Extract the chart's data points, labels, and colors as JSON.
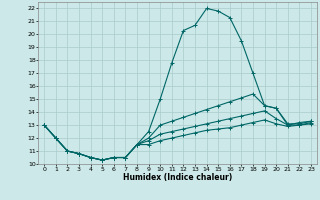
{
  "xlabel": "Humidex (Indice chaleur)",
  "background_color": "#cce8e8",
  "grid_color": "#aacccc",
  "line_color": "#006666",
  "xlim": [
    -0.5,
    23.5
  ],
  "ylim": [
    10,
    22.5
  ],
  "yticks": [
    10,
    11,
    12,
    13,
    14,
    15,
    16,
    17,
    18,
    19,
    20,
    21,
    22
  ],
  "xticks": [
    0,
    1,
    2,
    3,
    4,
    5,
    6,
    7,
    8,
    9,
    10,
    11,
    12,
    13,
    14,
    15,
    16,
    17,
    18,
    19,
    20,
    21,
    22,
    23
  ],
  "line1_x": [
    0,
    1,
    2,
    3,
    4,
    5,
    6,
    7,
    8,
    9,
    10,
    11,
    12,
    13,
    14,
    15,
    16,
    17,
    18,
    19,
    20,
    21,
    22,
    23
  ],
  "line1_y": [
    13,
    12,
    11,
    10.8,
    10.5,
    10.3,
    10.5,
    10.5,
    11.5,
    12.5,
    15,
    17.8,
    20.3,
    20.7,
    22,
    21.8,
    21.3,
    19.5,
    17,
    14.5,
    14.3,
    13,
    13.2,
    13.3
  ],
  "line2_x": [
    0,
    1,
    2,
    3,
    4,
    5,
    6,
    7,
    8,
    9,
    10,
    11,
    12,
    13,
    14,
    15,
    16,
    17,
    18,
    19,
    20,
    21,
    22,
    23
  ],
  "line2_y": [
    13,
    12,
    11,
    10.8,
    10.5,
    10.3,
    10.5,
    10.5,
    11.5,
    12.0,
    13.0,
    13.3,
    13.6,
    13.9,
    14.2,
    14.5,
    14.8,
    15.1,
    15.4,
    14.5,
    14.3,
    13.1,
    13.1,
    13.3
  ],
  "line3_x": [
    0,
    1,
    2,
    3,
    4,
    5,
    6,
    7,
    8,
    9,
    10,
    11,
    12,
    13,
    14,
    15,
    16,
    17,
    18,
    19,
    20,
    21,
    22,
    23
  ],
  "line3_y": [
    13,
    12,
    11,
    10.8,
    10.5,
    10.3,
    10.5,
    10.5,
    11.5,
    11.8,
    12.3,
    12.5,
    12.7,
    12.9,
    13.1,
    13.3,
    13.5,
    13.7,
    13.9,
    14.1,
    13.5,
    13.0,
    13.0,
    13.2
  ],
  "line4_x": [
    0,
    1,
    2,
    3,
    4,
    5,
    6,
    7,
    8,
    9,
    10,
    11,
    12,
    13,
    14,
    15,
    16,
    17,
    18,
    19,
    20,
    21,
    22,
    23
  ],
  "line4_y": [
    13,
    12,
    11,
    10.8,
    10.5,
    10.3,
    10.5,
    10.5,
    11.5,
    11.5,
    11.8,
    12.0,
    12.2,
    12.4,
    12.6,
    12.7,
    12.8,
    13.0,
    13.2,
    13.4,
    13.1,
    12.9,
    13.0,
    13.1
  ]
}
